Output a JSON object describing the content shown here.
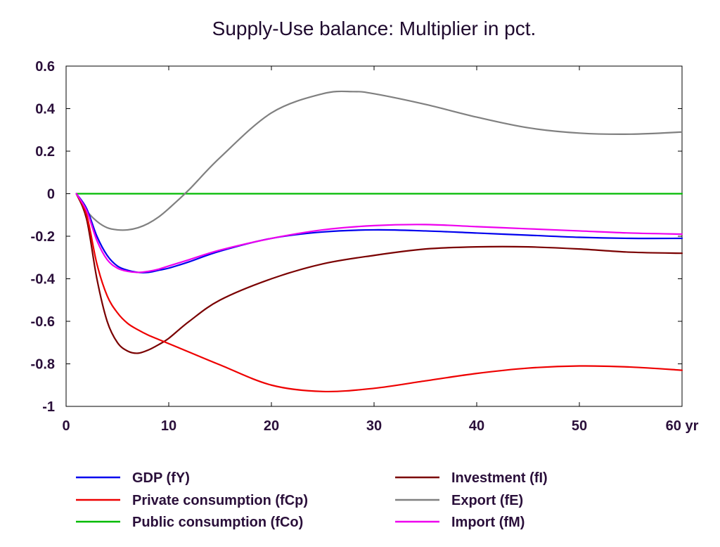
{
  "chart_data": {
    "type": "line",
    "title": "Supply-Use balance: Multiplier in pct.",
    "xlabel": "",
    "ylabel": "",
    "xlim": [
      0,
      60
    ],
    "ylim": [
      -1,
      0.6
    ],
    "xticks": [
      0,
      10,
      20,
      30,
      40,
      50,
      60
    ],
    "xtick_labels": [
      "0",
      "10",
      "20",
      "30",
      "40",
      "50",
      "60 yr"
    ],
    "yticks": [
      0.6,
      0.4,
      0.2,
      0,
      -0.2,
      -0.4,
      -0.6,
      -0.8,
      -1
    ],
    "ytick_labels": [
      "0.6",
      "0.4",
      "0.2",
      "0",
      "-0.2",
      "-0.4",
      "-0.6",
      "-0.8",
      "-1"
    ],
    "grid": false,
    "legend_position": "bottom",
    "series": [
      {
        "name": "GDP (fY)",
        "color": "#0000ee",
        "x": [
          1,
          2,
          3,
          4,
          5,
          6,
          7,
          8,
          9,
          10,
          12,
          15,
          20,
          25,
          30,
          35,
          40,
          45,
          50,
          55,
          60
        ],
        "y": [
          0,
          -0.07,
          -0.2,
          -0.29,
          -0.34,
          -0.36,
          -0.37,
          -0.37,
          -0.36,
          -0.35,
          -0.32,
          -0.27,
          -0.21,
          -0.18,
          -0.17,
          -0.175,
          -0.185,
          -0.195,
          -0.205,
          -0.21,
          -0.21
        ]
      },
      {
        "name": "Private consumption (fCp)",
        "color": "#ee0000",
        "x": [
          1,
          2,
          3,
          4,
          5,
          6,
          7,
          8,
          9,
          10,
          12,
          15,
          20,
          25,
          30,
          35,
          40,
          45,
          50,
          55,
          60
        ],
        "y": [
          0,
          -0.1,
          -0.33,
          -0.48,
          -0.56,
          -0.61,
          -0.64,
          -0.665,
          -0.685,
          -0.705,
          -0.745,
          -0.805,
          -0.9,
          -0.93,
          -0.915,
          -0.88,
          -0.845,
          -0.82,
          -0.81,
          -0.815,
          -0.83
        ]
      },
      {
        "name": "Public consumption (fCo)",
        "color": "#00bb00",
        "x": [
          1,
          60
        ],
        "y": [
          0,
          0
        ]
      },
      {
        "name": "Investment (fI)",
        "color": "#7a0000",
        "x": [
          1,
          2,
          3,
          4,
          5,
          6,
          7,
          8,
          9,
          10,
          12,
          15,
          20,
          25,
          30,
          35,
          40,
          45,
          50,
          55,
          60
        ],
        "y": [
          0,
          -0.12,
          -0.4,
          -0.6,
          -0.7,
          -0.74,
          -0.75,
          -0.735,
          -0.71,
          -0.68,
          -0.6,
          -0.5,
          -0.4,
          -0.33,
          -0.29,
          -0.26,
          -0.25,
          -0.25,
          -0.26,
          -0.275,
          -0.28
        ]
      },
      {
        "name": "Export (fE)",
        "color": "#808080",
        "x": [
          1,
          2,
          3,
          4,
          5,
          6,
          7,
          8,
          9,
          10,
          12,
          15,
          20,
          25,
          28,
          30,
          35,
          40,
          45,
          50,
          55,
          60
        ],
        "y": [
          0,
          -0.08,
          -0.13,
          -0.16,
          -0.17,
          -0.17,
          -0.16,
          -0.14,
          -0.11,
          -0.07,
          0.02,
          0.17,
          0.38,
          0.47,
          0.48,
          0.47,
          0.42,
          0.36,
          0.31,
          0.285,
          0.28,
          0.29
        ]
      },
      {
        "name": "Import (fM)",
        "color": "#ee00ee",
        "x": [
          1,
          2,
          3,
          4,
          5,
          6,
          7,
          8,
          9,
          10,
          12,
          15,
          20,
          25,
          30,
          35,
          40,
          45,
          50,
          55,
          60
        ],
        "y": [
          0,
          -0.08,
          -0.22,
          -0.31,
          -0.35,
          -0.365,
          -0.37,
          -0.365,
          -0.355,
          -0.34,
          -0.31,
          -0.265,
          -0.21,
          -0.17,
          -0.15,
          -0.145,
          -0.155,
          -0.165,
          -0.175,
          -0.185,
          -0.19
        ]
      }
    ]
  }
}
